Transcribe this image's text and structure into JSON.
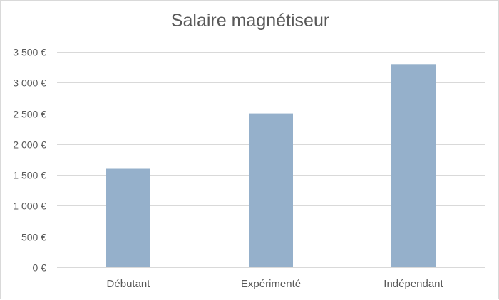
{
  "chart_data": {
    "type": "bar",
    "title": "Salaire magnétiseur",
    "categories": [
      "Débutant",
      "Expérimenté",
      "Indépendant"
    ],
    "values": [
      1600,
      2500,
      3300
    ],
    "ylim": [
      0,
      3500
    ],
    "yticks": [
      0,
      500,
      1000,
      1500,
      2000,
      2500,
      3000,
      3500
    ],
    "ytick_labels": [
      "0 €",
      "500 €",
      "1 000 €",
      "1 500 €",
      "2 000 €",
      "2 500 €",
      "3 000 €",
      "3 500 €"
    ],
    "xlabel": "",
    "ylabel": "",
    "grid": true,
    "legend": "none",
    "colors": {
      "bar": "#95b0cb",
      "grid": "#d9d9d9",
      "text": "#595959"
    }
  }
}
